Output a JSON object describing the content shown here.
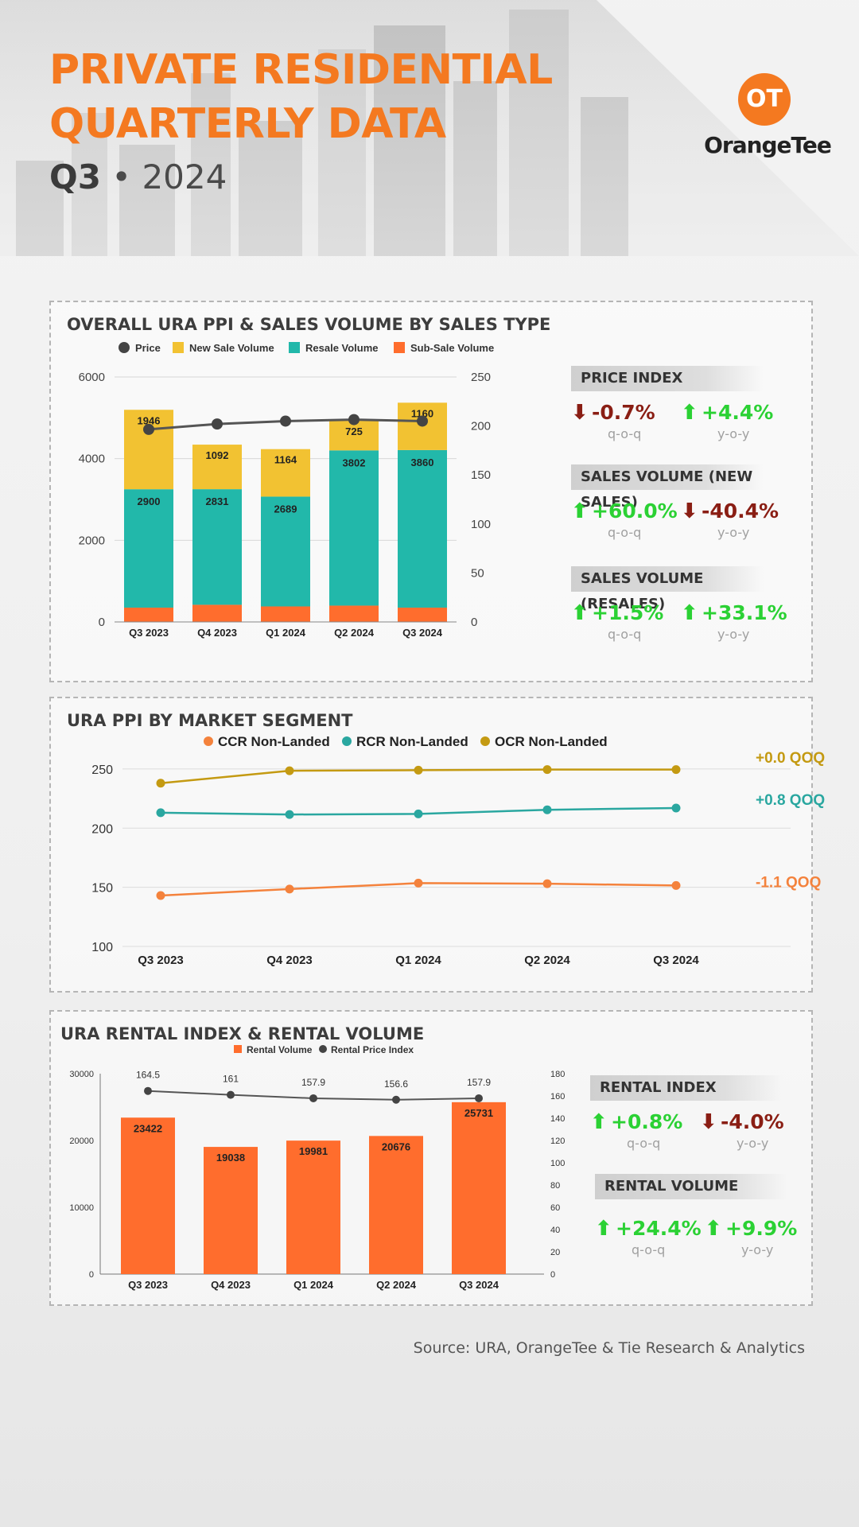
{
  "header": {
    "title_line1": "PRIVATE RESIDENTIAL",
    "title_line2": "QUARTERLY DATA",
    "quarter": "Q3",
    "separator": "•",
    "year": "2024",
    "logo_mark": "OT",
    "logo_text": "OrangeTee"
  },
  "colors": {
    "brand_orange": "#f47920",
    "new_sale": "#f2c232",
    "resale": "#22b8aa",
    "sub_sale": "#ff6d2d",
    "price_line": "#444444",
    "ccr": "#f4823c",
    "rcr": "#2aa7a0",
    "ocr": "#c49a12",
    "up": "#2bd134",
    "down": "#8a1e14"
  },
  "panel1": {
    "title": "OVERALL URA PPI & SALES VOLUME BY SALES TYPE",
    "stats": [
      {
        "heading": "PRICE INDEX",
        "items": [
          {
            "value": "-0.7%",
            "label": "q-o-q",
            "dir": "down"
          },
          {
            "value": "+4.4%",
            "label": "y-o-y",
            "dir": "up"
          }
        ]
      },
      {
        "heading": "SALES VOLUME (NEW SALES)",
        "items": [
          {
            "value": "+60.0%",
            "label": "q-o-q",
            "dir": "up"
          },
          {
            "value": "-40.4%",
            "label": "y-o-y",
            "dir": "down"
          }
        ]
      },
      {
        "heading": "SALES VOLUME (RESALES)",
        "items": [
          {
            "value": "+1.5%",
            "label": "q-o-q",
            "dir": "up"
          },
          {
            "value": "+33.1%",
            "label": "y-o-y",
            "dir": "up"
          }
        ]
      }
    ]
  },
  "panel2": {
    "title": "URA PPI BY MARKET SEGMENT",
    "qoq_labels": [
      "+0.0 QOQ",
      "+0.8 QOQ",
      "-1.1 QOQ"
    ]
  },
  "panel3": {
    "title": "URA RENTAL INDEX & RENTAL VOLUME",
    "stats": [
      {
        "heading": "RENTAL INDEX",
        "items": [
          {
            "value": "+0.8%",
            "label": "q-o-q",
            "dir": "up"
          },
          {
            "value": "-4.0%",
            "label": "y-o-y",
            "dir": "down"
          }
        ]
      },
      {
        "heading": "RENTAL VOLUME",
        "items": [
          {
            "value": "+24.4%",
            "label": "q-o-q",
            "dir": "up"
          },
          {
            "value": "+9.9%",
            "label": "y-o-y",
            "dir": "up"
          }
        ]
      }
    ]
  },
  "source": "Source: URA, OrangeTee & Tie Research & Analytics",
  "chart_data": [
    {
      "type": "bar",
      "stacked": true,
      "categories": [
        "Q3 2023",
        "Q4 2023",
        "Q1 2024",
        "Q2 2024",
        "Q3 2024"
      ],
      "series": [
        {
          "name": "Sub-Sale Volume",
          "values": [
            350,
            420,
            380,
            400,
            350
          ]
        },
        {
          "name": "Resale Volume",
          "values": [
            2900,
            2831,
            2689,
            3802,
            3860
          ],
          "labels": [
            "2900",
            "2831",
            "2689",
            "3802",
            "3860"
          ]
        },
        {
          "name": "New Sale Volume",
          "values": [
            1946,
            1092,
            1164,
            725,
            1160
          ],
          "labels": [
            "1946",
            "1092",
            "1164",
            "725",
            "1160"
          ]
        }
      ],
      "line": {
        "name": "Price",
        "values": [
          196.5,
          202.0,
          205.0,
          206.5,
          205.0
        ],
        "axis": "right"
      },
      "legend": [
        "Price",
        "New Sale Volume",
        "Resale Volume",
        "Sub-Sale Volume"
      ],
      "ylim": [
        0,
        6000
      ],
      "yticks": [
        "0",
        "2000",
        "4000",
        "6000"
      ],
      "y2lim": [
        0,
        250
      ],
      "y2ticks": [
        "0",
        "50",
        "100",
        "150",
        "200",
        "250"
      ],
      "legend_position": "top",
      "grid": true
    },
    {
      "type": "line",
      "categories": [
        "Q3 2023",
        "Q4 2023",
        "Q1 2024",
        "Q2 2024",
        "Q3 2024"
      ],
      "series": [
        {
          "name": "CCR Non-Landed",
          "values": [
            143,
            148.5,
            153.5,
            153,
            151.5
          ]
        },
        {
          "name": "RCR Non-Landed",
          "values": [
            213,
            211.5,
            212,
            215.5,
            217
          ]
        },
        {
          "name": "OCR Non-Landed",
          "values": [
            238,
            248.5,
            249,
            249.5,
            249.5
          ]
        }
      ],
      "ylim": [
        100,
        260
      ],
      "yticks": [
        "100",
        "150",
        "200",
        "250"
      ],
      "legend_position": "top",
      "grid": true
    },
    {
      "type": "bar",
      "categories": [
        "Q3 2023",
        "Q4 2023",
        "Q1 2024",
        "Q2 2024",
        "Q3 2024"
      ],
      "series": [
        {
          "name": "Rental Volume",
          "values": [
            23422,
            19038,
            19981,
            20676,
            25731
          ],
          "labels": [
            "23422",
            "19038",
            "19981",
            "20676",
            "25731"
          ]
        }
      ],
      "line": {
        "name": "Rental Price Index",
        "values": [
          164.5,
          161,
          157.9,
          156.6,
          157.9
        ],
        "labels": [
          "164.5",
          "161",
          "157.9",
          "156.6",
          "157.9"
        ],
        "axis": "right"
      },
      "legend": [
        "Rental Volume",
        "Rental Price Index"
      ],
      "ylim": [
        0,
        30000
      ],
      "yticks": [
        "0",
        "10000",
        "20000",
        "30000"
      ],
      "y2lim": [
        0,
        180
      ],
      "y2ticks": [
        "0",
        "20",
        "40",
        "60",
        "80",
        "100",
        "120",
        "140",
        "160",
        "180"
      ],
      "legend_position": "top",
      "grid": false
    }
  ]
}
